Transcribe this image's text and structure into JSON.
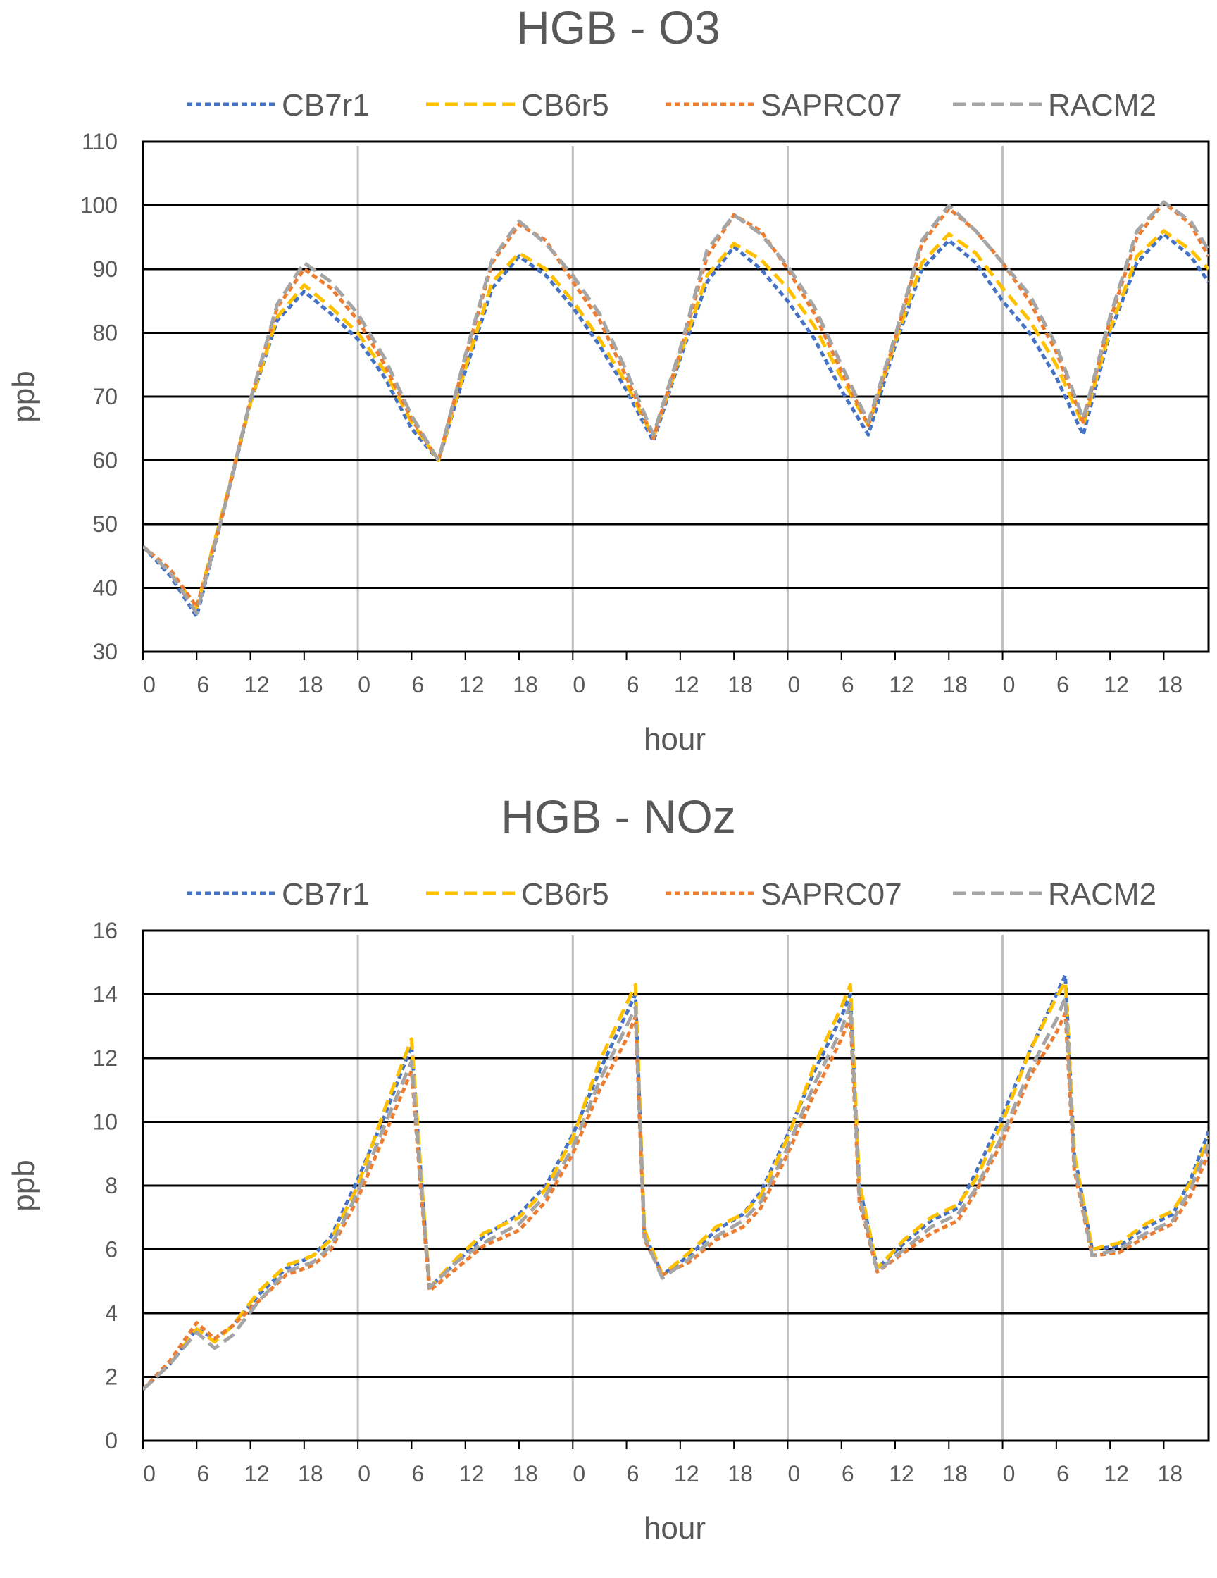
{
  "colors": {
    "CB7r1": "#4472C4",
    "CB6r5": "#FFC000",
    "SAPRC07": "#ED7D31",
    "RACM2": "#A5A5A5",
    "gridline": "#000000",
    "day_divider": "#BFBFBF",
    "text": "#595959"
  },
  "chart_data": [
    {
      "type": "line",
      "title": "HGB - O3",
      "xlabel": "hour",
      "ylabel": "ppb",
      "ylim": [
        30,
        110
      ],
      "yticks": [
        "30",
        "40",
        "50",
        "60",
        "70",
        "80",
        "90",
        "100",
        "110"
      ],
      "xticks": [
        "0",
        "6",
        "12",
        "18",
        "0",
        "6",
        "12",
        "18",
        "0",
        "6",
        "12",
        "18",
        "0",
        "6",
        "12",
        "18",
        "0",
        "6",
        "12",
        "18"
      ],
      "xlim": [
        0,
        119
      ],
      "grid": "horizontal",
      "legend_position": "top",
      "x": [
        0,
        3,
        6,
        9,
        12,
        15,
        18,
        21,
        24,
        27,
        30,
        33,
        36,
        39,
        42,
        45,
        48,
        51,
        54,
        57,
        60,
        63,
        66,
        69,
        72,
        75,
        78,
        81,
        84,
        87,
        90,
        93,
        96,
        99,
        102,
        105,
        108,
        111,
        114,
        117,
        119
      ],
      "series": [
        {
          "name": "CB7r1",
          "values": [
            46.5,
            42,
            35.5,
            52,
            69,
            82,
            86.5,
            83,
            79,
            73,
            65,
            60,
            74,
            87,
            92,
            89,
            84,
            78,
            71,
            63,
            76,
            88,
            93.5,
            90,
            85,
            79,
            71,
            64,
            78,
            90,
            94.5,
            91,
            85,
            80,
            73,
            64,
            80,
            91,
            95.5,
            92,
            88
          ]
        },
        {
          "name": "CB6r5",
          "values": [
            46.5,
            42.5,
            37,
            52.5,
            69,
            82.5,
            87.5,
            84,
            80,
            74,
            66,
            60,
            74.5,
            88,
            92.5,
            90,
            85,
            79,
            72,
            63.5,
            76.5,
            89,
            94,
            91.5,
            87,
            81,
            73,
            65.5,
            78.5,
            91,
            95.5,
            92.5,
            87,
            82,
            75,
            65.5,
            80.5,
            92,
            96,
            93,
            90
          ]
        },
        {
          "name": "SAPRC07",
          "values": [
            46.5,
            43,
            37,
            52,
            69.5,
            84,
            90,
            87,
            82,
            75,
            66.5,
            60,
            76,
            91,
            97,
            94.5,
            88,
            82,
            73,
            63.5,
            77,
            92,
            98.5,
            96,
            90,
            83,
            74,
            65.5,
            79,
            94,
            99.5,
            96,
            91,
            85,
            77,
            66,
            82,
            95,
            100.5,
            97,
            92
          ]
        },
        {
          "name": "RACM2",
          "values": [
            46.5,
            42.5,
            36,
            52,
            69.5,
            84.5,
            91,
            88,
            83,
            76,
            67,
            60,
            76.5,
            91.5,
            97.5,
            94,
            89,
            83,
            74,
            64,
            77.5,
            93,
            98.5,
            95.5,
            90.5,
            84,
            75,
            66,
            79.5,
            94.5,
            100,
            96,
            91,
            86,
            78,
            66.5,
            82.5,
            96,
            100.5,
            97.5,
            93
          ]
        }
      ]
    },
    {
      "type": "line",
      "title": "HGB - NOz",
      "xlabel": "hour",
      "ylabel": "ppb",
      "ylim": [
        0,
        16
      ],
      "yticks": [
        "0",
        "2",
        "4",
        "6",
        "8",
        "10",
        "12",
        "14",
        "16"
      ],
      "xticks": [
        "0",
        "6",
        "12",
        "18",
        "0",
        "6",
        "12",
        "18",
        "0",
        "6",
        "12",
        "18",
        "0",
        "6",
        "12",
        "18",
        "0",
        "6",
        "12",
        "18"
      ],
      "xlim": [
        0,
        119
      ],
      "grid": "horizontal",
      "legend_position": "top",
      "series": [
        {
          "name": "CB7r1",
          "points": [
            [
              0,
              1.6
            ],
            [
              3,
              2.4
            ],
            [
              6,
              3.5
            ],
            [
              8,
              3.2
            ],
            [
              10,
              3.6
            ],
            [
              13,
              4.6
            ],
            [
              16,
              5.4
            ],
            [
              19,
              5.8
            ],
            [
              21,
              6.4
            ],
            [
              24,
              8.2
            ],
            [
              27,
              10.2
            ],
            [
              30,
              12.4
            ],
            [
              31,
              8.5
            ],
            [
              32,
              4.8
            ],
            [
              35,
              5.6
            ],
            [
              38,
              6.4
            ],
            [
              42,
              7.1
            ],
            [
              45,
              8.0
            ],
            [
              48,
              9.6
            ],
            [
              51,
              11.6
            ],
            [
              54,
              13.4
            ],
            [
              55,
              14.0
            ],
            [
              56,
              6.5
            ],
            [
              58,
              5.2
            ],
            [
              61,
              5.8
            ],
            [
              64,
              6.6
            ],
            [
              67,
              7.1
            ],
            [
              69,
              7.8
            ],
            [
              72,
              9.6
            ],
            [
              75,
              11.6
            ],
            [
              78,
              13.3
            ],
            [
              79,
              14.0
            ],
            [
              80,
              8.0
            ],
            [
              82,
              5.4
            ],
            [
              85,
              6.2
            ],
            [
              88,
              6.9
            ],
            [
              91,
              7.3
            ],
            [
              93,
              8.4
            ],
            [
              96,
              10.2
            ],
            [
              99,
              12.2
            ],
            [
              102,
              14.0
            ],
            [
              103,
              14.6
            ],
            [
              104,
              9.0
            ],
            [
              106,
              6.0
            ],
            [
              109,
              6.1
            ],
            [
              112,
              6.7
            ],
            [
              115,
              7.1
            ],
            [
              117,
              8.2
            ],
            [
              119,
              9.7
            ]
          ]
        },
        {
          "name": "CB6r5",
          "points": [
            [
              0,
              1.6
            ],
            [
              3,
              2.4
            ],
            [
              6,
              3.5
            ],
            [
              8,
              3.1
            ],
            [
              10,
              3.6
            ],
            [
              13,
              4.7
            ],
            [
              16,
              5.5
            ],
            [
              19,
              5.8
            ],
            [
              21,
              6.3
            ],
            [
              24,
              8.0
            ],
            [
              27,
              10.4
            ],
            [
              30,
              12.6
            ],
            [
              31,
              8.6
            ],
            [
              32,
              4.8
            ],
            [
              35,
              5.7
            ],
            [
              38,
              6.5
            ],
            [
              42,
              7.0
            ],
            [
              45,
              7.9
            ],
            [
              48,
              9.5
            ],
            [
              51,
              11.9
            ],
            [
              54,
              13.7
            ],
            [
              55,
              14.3
            ],
            [
              56,
              6.6
            ],
            [
              58,
              5.2
            ],
            [
              61,
              5.9
            ],
            [
              64,
              6.7
            ],
            [
              67,
              7.1
            ],
            [
              69,
              7.7
            ],
            [
              72,
              9.5
            ],
            [
              75,
              11.8
            ],
            [
              78,
              13.6
            ],
            [
              79,
              14.3
            ],
            [
              80,
              8.1
            ],
            [
              82,
              5.4
            ],
            [
              85,
              6.3
            ],
            [
              88,
              7.0
            ],
            [
              91,
              7.4
            ],
            [
              93,
              8.2
            ],
            [
              96,
              10.0
            ],
            [
              99,
              12.2
            ],
            [
              102,
              13.9
            ],
            [
              103,
              14.4
            ],
            [
              104,
              9.0
            ],
            [
              106,
              6.0
            ],
            [
              109,
              6.2
            ],
            [
              112,
              6.8
            ],
            [
              115,
              7.2
            ],
            [
              117,
              8.1
            ],
            [
              119,
              9.5
            ]
          ]
        },
        {
          "name": "SAPRC07",
          "points": [
            [
              0,
              1.6
            ],
            [
              3,
              2.5
            ],
            [
              6,
              3.7
            ],
            [
              8,
              3.2
            ],
            [
              10,
              3.6
            ],
            [
              13,
              4.4
            ],
            [
              16,
              5.2
            ],
            [
              19,
              5.5
            ],
            [
              21,
              6.0
            ],
            [
              24,
              7.6
            ],
            [
              27,
              9.6
            ],
            [
              30,
              11.6
            ],
            [
              31,
              8.0
            ],
            [
              32,
              4.7
            ],
            [
              35,
              5.4
            ],
            [
              38,
              6.1
            ],
            [
              42,
              6.6
            ],
            [
              45,
              7.5
            ],
            [
              48,
              9.0
            ],
            [
              51,
              11.0
            ],
            [
              54,
              12.6
            ],
            [
              55,
              13.3
            ],
            [
              56,
              6.3
            ],
            [
              58,
              5.2
            ],
            [
              61,
              5.6
            ],
            [
              64,
              6.3
            ],
            [
              67,
              6.7
            ],
            [
              69,
              7.3
            ],
            [
              72,
              9.0
            ],
            [
              75,
              10.9
            ],
            [
              78,
              12.6
            ],
            [
              79,
              13.3
            ],
            [
              80,
              7.5
            ],
            [
              82,
              5.3
            ],
            [
              85,
              5.9
            ],
            [
              88,
              6.5
            ],
            [
              91,
              6.9
            ],
            [
              93,
              7.8
            ],
            [
              96,
              9.4
            ],
            [
              99,
              11.4
            ],
            [
              102,
              12.8
            ],
            [
              103,
              13.4
            ],
            [
              104,
              8.5
            ],
            [
              106,
              5.8
            ],
            [
              109,
              5.9
            ],
            [
              112,
              6.4
            ],
            [
              115,
              6.8
            ],
            [
              117,
              7.7
            ],
            [
              119,
              9.0
            ]
          ]
        },
        {
          "name": "RACM2",
          "points": [
            [
              0,
              1.6
            ],
            [
              3,
              2.4
            ],
            [
              6,
              3.4
            ],
            [
              8,
              2.9
            ],
            [
              10,
              3.3
            ],
            [
              13,
              4.4
            ],
            [
              16,
              5.3
            ],
            [
              19,
              5.6
            ],
            [
              21,
              6.1
            ],
            [
              24,
              7.8
            ],
            [
              27,
              9.9
            ],
            [
              30,
              11.9
            ],
            [
              31,
              8.2
            ],
            [
              32,
              4.8
            ],
            [
              35,
              5.6
            ],
            [
              38,
              6.2
            ],
            [
              42,
              6.8
            ],
            [
              45,
              7.7
            ],
            [
              48,
              9.2
            ],
            [
              51,
              11.3
            ],
            [
              54,
              13.0
            ],
            [
              55,
              13.6
            ],
            [
              56,
              6.4
            ],
            [
              58,
              5.1
            ],
            [
              61,
              5.7
            ],
            [
              64,
              6.4
            ],
            [
              67,
              6.9
            ],
            [
              69,
              7.5
            ],
            [
              72,
              9.2
            ],
            [
              75,
              11.2
            ],
            [
              78,
              12.9
            ],
            [
              79,
              13.7
            ],
            [
              80,
              7.7
            ],
            [
              82,
              5.3
            ],
            [
              85,
              6.0
            ],
            [
              88,
              6.7
            ],
            [
              91,
              7.1
            ],
            [
              93,
              7.9
            ],
            [
              96,
              9.6
            ],
            [
              99,
              11.6
            ],
            [
              102,
              13.2
            ],
            [
              103,
              13.9
            ],
            [
              104,
              8.7
            ],
            [
              106,
              5.8
            ],
            [
              109,
              6.0
            ],
            [
              112,
              6.5
            ],
            [
              115,
              6.9
            ],
            [
              117,
              7.9
            ],
            [
              119,
              9.3
            ]
          ]
        }
      ]
    }
  ]
}
